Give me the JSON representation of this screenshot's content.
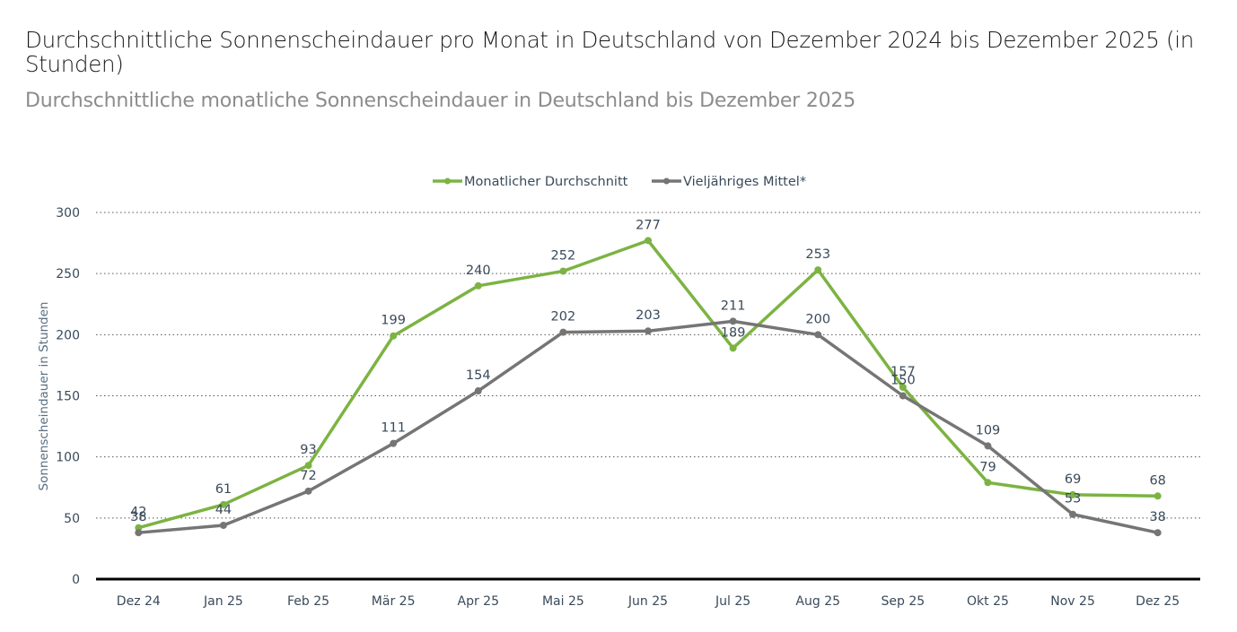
{
  "header": {
    "title": "Durchschnittliche Sonnenscheindauer pro Monat in Deutschland von Dezember 2024 bis Dezember 2025 (in Stunden)",
    "subtitle": "Durchschnittliche monatliche Sonnenscheindauer in Deutschland bis Dezember 2025"
  },
  "chart_data": {
    "type": "line",
    "title": "Durchschnittliche Sonnenscheindauer pro Monat in Deutschland von Dezember 2024 bis Dezember 2025 (in Stunden)",
    "subtitle": "Durchschnittliche monatliche Sonnenscheindauer in Deutschland bis Dezember 2025",
    "xlabel": "",
    "ylabel": "Sonnenscheindauer in Stunden",
    "ylim": [
      0,
      300
    ],
    "yticks": [
      0,
      50,
      100,
      150,
      200,
      250,
      300
    ],
    "grid": true,
    "legend_position": "top-center",
    "categories": [
      "Dez 24",
      "Jan 25",
      "Feb 25",
      "Mär 25",
      "Apr 25",
      "Mai 25",
      "Jun 25",
      "Jul 25",
      "Aug 25",
      "Sep 25",
      "Okt 25",
      "Nov 25",
      "Dez 25"
    ],
    "series": [
      {
        "name": "Monatlicher Durchschnitt",
        "color": "#7cb342",
        "values": [
          42,
          61,
          93,
          199,
          240,
          252,
          277,
          189,
          253,
          157,
          79,
          69,
          68
        ]
      },
      {
        "name": "Vieljähriges Mittel*",
        "color": "#757575",
        "values": [
          38,
          44,
          72,
          111,
          154,
          202,
          203,
          211,
          200,
          150,
          109,
          53,
          38
        ]
      }
    ]
  }
}
